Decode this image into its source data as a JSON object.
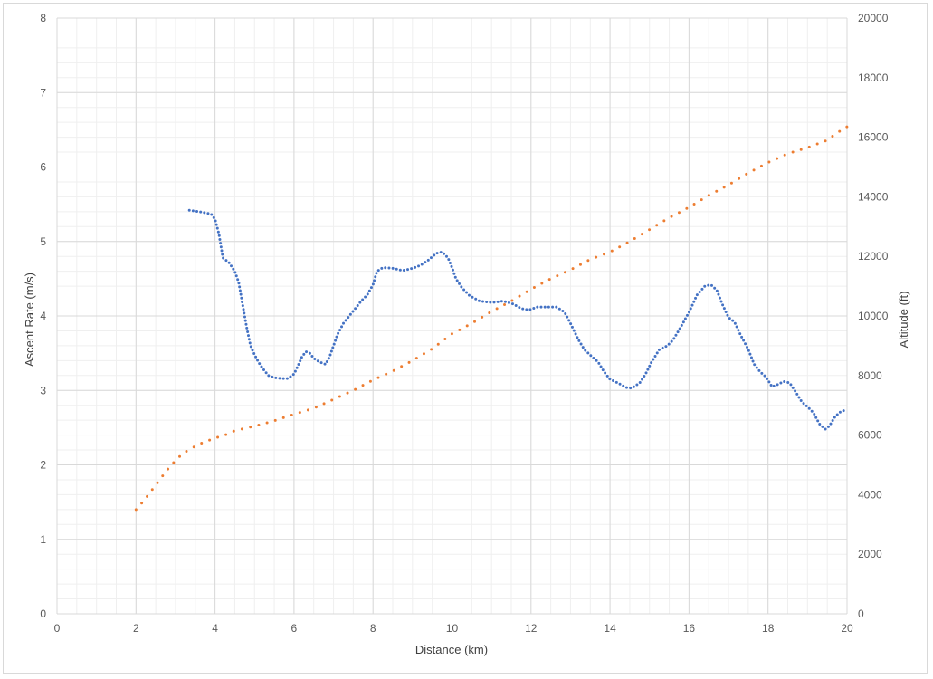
{
  "chart_data": {
    "type": "scatter",
    "title": "",
    "xlabel": "Distance (km)",
    "ylabel": "Ascent Rate (m/s)",
    "y2label": "Altitude (ft)",
    "xlim": [
      0,
      20
    ],
    "ylim": [
      0,
      8
    ],
    "y2lim": [
      0,
      20000
    ],
    "x_ticks": [
      "0",
      "2",
      "4",
      "6",
      "8",
      "10",
      "12",
      "14",
      "16",
      "18",
      "20"
    ],
    "y_ticks": [
      "0",
      "1",
      "2",
      "3",
      "4",
      "5",
      "6",
      "7",
      "8"
    ],
    "y2_ticks": [
      "0",
      "2000",
      "4000",
      "6000",
      "8000",
      "10000",
      "12000",
      "14000",
      "16000",
      "18000",
      "20000"
    ],
    "grid": true,
    "legend": "none",
    "series": [
      {
        "axis": "left",
        "color": "#4472c4",
        "style": "dotted",
        "points": [
          [
            3.35,
            5.42
          ],
          [
            3.6,
            5.4
          ],
          [
            3.9,
            5.37
          ],
          [
            4.0,
            5.3
          ],
          [
            4.1,
            5.1
          ],
          [
            4.2,
            4.78
          ],
          [
            4.35,
            4.72
          ],
          [
            4.5,
            4.6
          ],
          [
            4.6,
            4.45
          ],
          [
            4.7,
            4.15
          ],
          [
            4.8,
            3.85
          ],
          [
            4.9,
            3.6
          ],
          [
            5.0,
            3.48
          ],
          [
            5.1,
            3.38
          ],
          [
            5.2,
            3.3
          ],
          [
            5.35,
            3.2
          ],
          [
            5.5,
            3.17
          ],
          [
            5.7,
            3.16
          ],
          [
            5.85,
            3.16
          ],
          [
            6.0,
            3.22
          ],
          [
            6.1,
            3.33
          ],
          [
            6.2,
            3.45
          ],
          [
            6.3,
            3.52
          ],
          [
            6.4,
            3.5
          ],
          [
            6.5,
            3.43
          ],
          [
            6.65,
            3.38
          ],
          [
            6.8,
            3.35
          ],
          [
            6.9,
            3.45
          ],
          [
            7.0,
            3.6
          ],
          [
            7.1,
            3.75
          ],
          [
            7.25,
            3.9
          ],
          [
            7.4,
            4.0
          ],
          [
            7.55,
            4.1
          ],
          [
            7.7,
            4.2
          ],
          [
            7.85,
            4.28
          ],
          [
            8.0,
            4.42
          ],
          [
            8.1,
            4.6
          ],
          [
            8.25,
            4.65
          ],
          [
            8.5,
            4.64
          ],
          [
            8.75,
            4.61
          ],
          [
            9.0,
            4.64
          ],
          [
            9.2,
            4.68
          ],
          [
            9.4,
            4.75
          ],
          [
            9.6,
            4.84
          ],
          [
            9.75,
            4.86
          ],
          [
            9.9,
            4.78
          ],
          [
            10.0,
            4.65
          ],
          [
            10.1,
            4.5
          ],
          [
            10.25,
            4.38
          ],
          [
            10.45,
            4.27
          ],
          [
            10.7,
            4.2
          ],
          [
            11.0,
            4.18
          ],
          [
            11.3,
            4.2
          ],
          [
            11.55,
            4.16
          ],
          [
            11.75,
            4.1
          ],
          [
            11.95,
            4.08
          ],
          [
            12.15,
            4.12
          ],
          [
            12.4,
            4.12
          ],
          [
            12.65,
            4.12
          ],
          [
            12.85,
            4.05
          ],
          [
            13.0,
            3.9
          ],
          [
            13.2,
            3.68
          ],
          [
            13.35,
            3.55
          ],
          [
            13.55,
            3.45
          ],
          [
            13.7,
            3.38
          ],
          [
            13.85,
            3.25
          ],
          [
            14.0,
            3.15
          ],
          [
            14.2,
            3.1
          ],
          [
            14.4,
            3.04
          ],
          [
            14.55,
            3.03
          ],
          [
            14.75,
            3.1
          ],
          [
            14.9,
            3.22
          ],
          [
            15.05,
            3.38
          ],
          [
            15.25,
            3.55
          ],
          [
            15.45,
            3.6
          ],
          [
            15.6,
            3.68
          ],
          [
            15.8,
            3.86
          ],
          [
            16.0,
            4.05
          ],
          [
            16.2,
            4.28
          ],
          [
            16.4,
            4.4
          ],
          [
            16.55,
            4.42
          ],
          [
            16.7,
            4.35
          ],
          [
            16.85,
            4.15
          ],
          [
            17.0,
            3.98
          ],
          [
            17.15,
            3.92
          ],
          [
            17.3,
            3.75
          ],
          [
            17.5,
            3.55
          ],
          [
            17.65,
            3.35
          ],
          [
            17.8,
            3.25
          ],
          [
            17.95,
            3.18
          ],
          [
            18.1,
            3.05
          ],
          [
            18.25,
            3.08
          ],
          [
            18.4,
            3.12
          ],
          [
            18.55,
            3.1
          ],
          [
            18.7,
            2.98
          ],
          [
            18.85,
            2.85
          ],
          [
            19.0,
            2.78
          ],
          [
            19.15,
            2.7
          ],
          [
            19.3,
            2.55
          ],
          [
            19.45,
            2.48
          ],
          [
            19.55,
            2.52
          ],
          [
            19.7,
            2.65
          ],
          [
            19.85,
            2.72
          ],
          [
            20.0,
            2.74
          ]
        ]
      },
      {
        "axis": "right",
        "color": "#ed7d31",
        "style": "dotted",
        "points": [
          [
            2.0,
            3500
          ],
          [
            2.2,
            3800
          ],
          [
            2.4,
            4150
          ],
          [
            2.6,
            4500
          ],
          [
            2.8,
            4850
          ],
          [
            3.0,
            5150
          ],
          [
            3.2,
            5400
          ],
          [
            3.4,
            5550
          ],
          [
            3.6,
            5700
          ],
          [
            3.8,
            5800
          ],
          [
            4.0,
            5900
          ],
          [
            4.25,
            6000
          ],
          [
            4.5,
            6150
          ],
          [
            5.0,
            6300
          ],
          [
            5.5,
            6480
          ],
          [
            6.0,
            6700
          ],
          [
            6.5,
            6900
          ],
          [
            7.0,
            7200
          ],
          [
            7.5,
            7500
          ],
          [
            8.0,
            7850
          ],
          [
            8.5,
            8150
          ],
          [
            9.0,
            8500
          ],
          [
            9.5,
            8900
          ],
          [
            10.0,
            9400
          ],
          [
            10.5,
            9750
          ],
          [
            11.0,
            10150
          ],
          [
            11.5,
            10500
          ],
          [
            12.0,
            10900
          ],
          [
            12.5,
            11250
          ],
          [
            13.0,
            11550
          ],
          [
            13.5,
            11900
          ],
          [
            14.0,
            12150
          ],
          [
            14.5,
            12500
          ],
          [
            15.0,
            12900
          ],
          [
            15.5,
            13300
          ],
          [
            16.0,
            13650
          ],
          [
            16.5,
            14050
          ],
          [
            17.0,
            14400
          ],
          [
            17.5,
            14800
          ],
          [
            18.0,
            15150
          ],
          [
            18.5,
            15450
          ],
          [
            19.0,
            15650
          ],
          [
            19.5,
            15900
          ],
          [
            19.75,
            16150
          ],
          [
            20.0,
            16350
          ]
        ]
      }
    ]
  }
}
